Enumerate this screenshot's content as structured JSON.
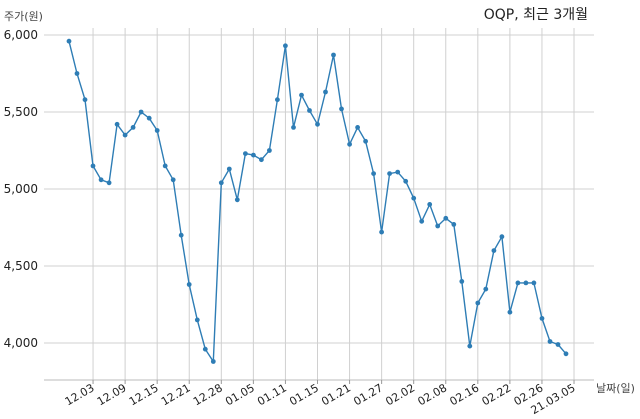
{
  "chart_data": {
    "type": "line",
    "title": "OQP, 최근 3개월",
    "ylabel": "주가(원)",
    "xlabel": "날짜(일)",
    "ylim": [
      3800,
      6050
    ],
    "yticks": [
      4000,
      4500,
      5000,
      5500,
      6000
    ],
    "ytick_labels": [
      "4,000",
      "4,500",
      "5,000",
      "5,500",
      "6,000"
    ],
    "xtick_labels": [
      "12.03",
      "12.09",
      "12.15",
      "12.21",
      "12.28",
      "01.05",
      "01.11",
      "01.15",
      "01.21",
      "01.27",
      "02.02",
      "02.08",
      "02.16",
      "02.22",
      "02.26",
      "21.03.05"
    ],
    "xtick_index": [
      3,
      7,
      11,
      15,
      19,
      23,
      27,
      31,
      35,
      39,
      43,
      47,
      51,
      55,
      59,
      63
    ],
    "grid": true,
    "color": "#2e7db5",
    "series": [
      {
        "values": [
          5960,
          5750,
          5580,
          5150,
          5060,
          5040,
          5420,
          5350,
          5400,
          5500,
          5460,
          5380,
          5150,
          5060,
          4700,
          4380,
          4150,
          3960,
          3880,
          5040,
          5130,
          4930,
          5230,
          5220,
          5190,
          5250,
          5580,
          5930,
          5400,
          5610,
          5510,
          5420,
          5630,
          5870,
          5520,
          5290,
          5400,
          5310,
          5100,
          4720,
          5100,
          5110,
          5050,
          4940,
          4790,
          4900,
          4760,
          4810,
          4770,
          4400,
          3980,
          4260,
          4350,
          4600,
          4690,
          4200,
          4390,
          4390,
          4390,
          4160,
          4010,
          3990,
          3930
        ]
      }
    ]
  }
}
